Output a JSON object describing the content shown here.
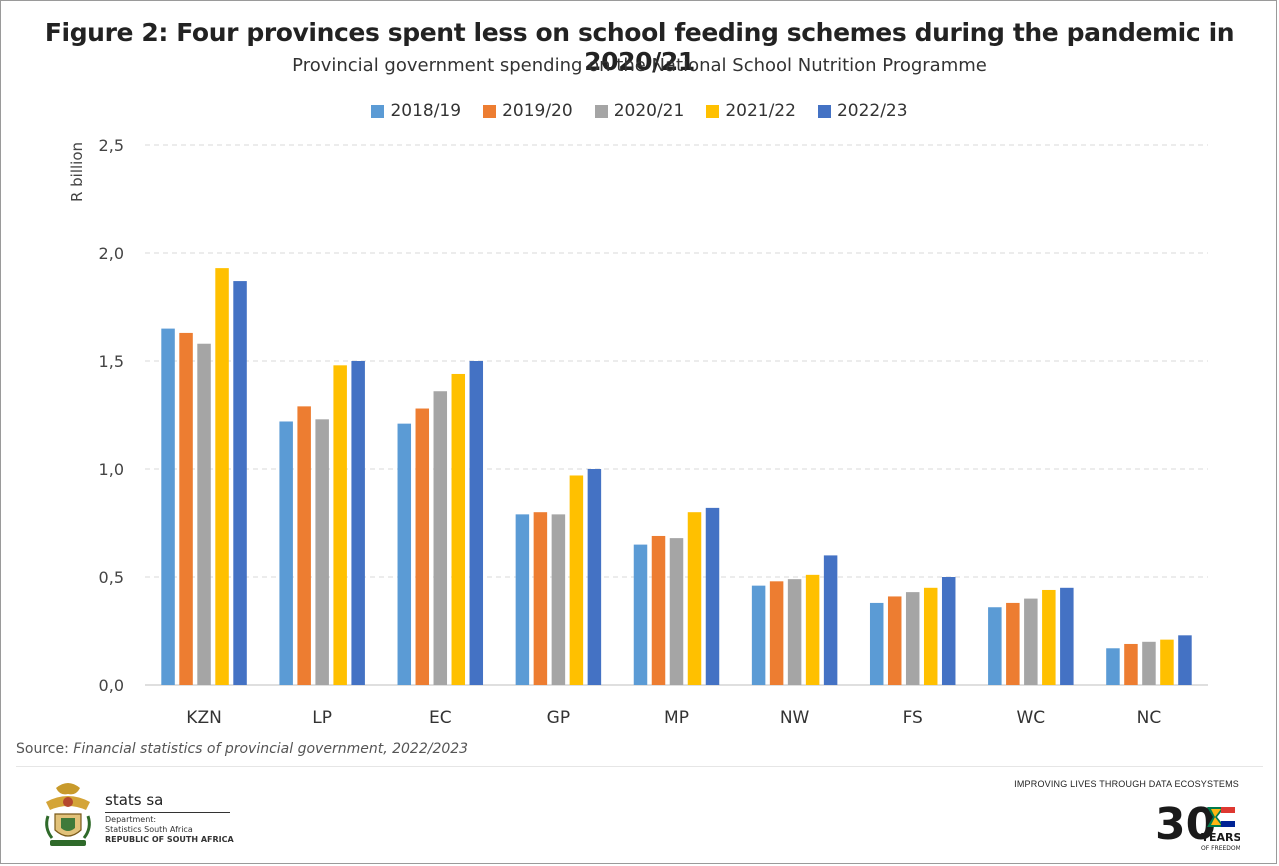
{
  "title": "Figure 2: Four provinces spent less on school feeding schemes during the pandemic in 2020/21",
  "subtitle": "Provincial government spending on the National School Nutrition Programme",
  "source_label": "Source: ",
  "source_text": "Financial statistics of provincial government, 2022/2023",
  "footer": {
    "brand": "stats sa",
    "dept_line1": "Department:",
    "dept_line2": "Statistics South Africa",
    "dept_line3": "REPUBLIC OF SOUTH AFRICA",
    "tagline": "IMPROVING LIVES THROUGH DATA ECOSYSTEMS",
    "years_big": "30",
    "years_word": "YEARS",
    "years_sub": "OF FREEDOM"
  },
  "chart_data": {
    "type": "bar",
    "ylabel": "R billion",
    "xlabel": "",
    "ylim": [
      0,
      2.5
    ],
    "yticks": [
      "0,0",
      "0,5",
      "1,0",
      "1,5",
      "2,0",
      "2,5"
    ],
    "ytick_values": [
      0,
      0.5,
      1.0,
      1.5,
      2.0,
      2.5
    ],
    "grid": true,
    "legend_position": "top-center",
    "categories": [
      "KZN",
      "LP",
      "EC",
      "GP",
      "MP",
      "NW",
      "FS",
      "WC",
      "NC"
    ],
    "series": [
      {
        "name": "2018/19",
        "color": "#5B9BD5",
        "values": [
          1.65,
          1.22,
          1.21,
          0.79,
          0.65,
          0.46,
          0.38,
          0.36,
          0.17
        ]
      },
      {
        "name": "2019/20",
        "color": "#ED7D31",
        "values": [
          1.63,
          1.29,
          1.28,
          0.8,
          0.69,
          0.48,
          0.41,
          0.38,
          0.19
        ]
      },
      {
        "name": "2020/21",
        "color": "#A5A5A5",
        "values": [
          1.58,
          1.23,
          1.36,
          0.79,
          0.68,
          0.49,
          0.43,
          0.4,
          0.2
        ]
      },
      {
        "name": "2021/22",
        "color": "#FFC000",
        "values": [
          1.93,
          1.48,
          1.44,
          0.97,
          0.8,
          0.51,
          0.45,
          0.44,
          0.21
        ]
      },
      {
        "name": "2022/23",
        "color": "#4472C4",
        "values": [
          1.87,
          1.5,
          1.5,
          1.0,
          0.82,
          0.6,
          0.5,
          0.45,
          0.23
        ]
      }
    ]
  }
}
